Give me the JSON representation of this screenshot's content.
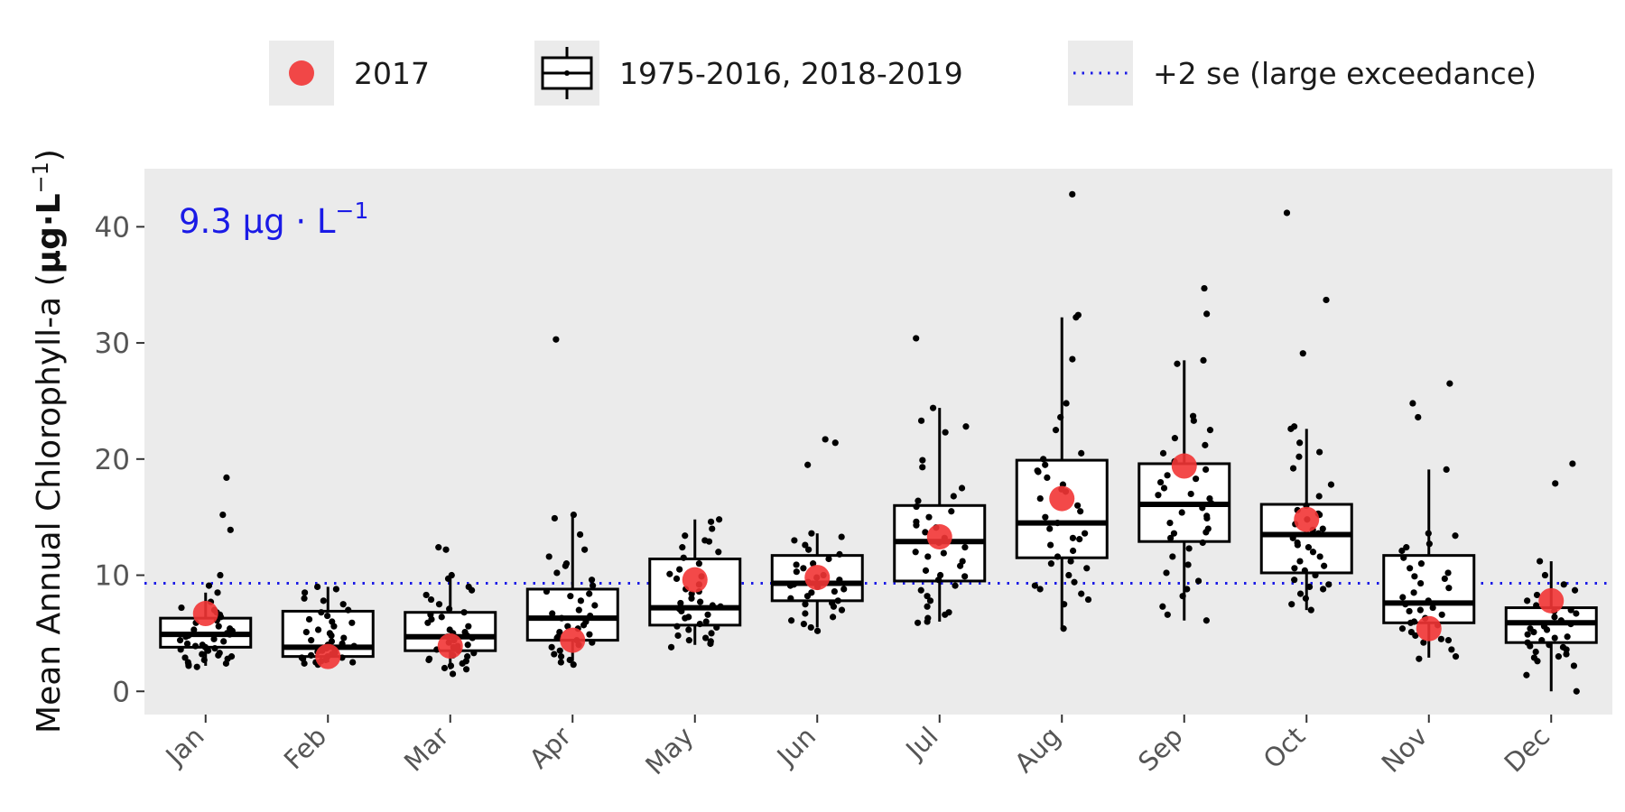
{
  "chart_data": {
    "type": "box",
    "title": "",
    "ylabel": "Mean Annual Chlorophyll-a (μg·L⁻¹)",
    "ylabel_parts": {
      "main": "Mean Annual Chlorophyll-a (",
      "unit": "μg·L",
      "sup": "−1",
      "close": ")"
    },
    "xlabel": "",
    "ylim": [
      -2,
      45
    ],
    "yticks": [
      "0",
      "10",
      "20",
      "30",
      "40"
    ],
    "ytick_values": [
      0,
      10,
      20,
      30,
      40
    ],
    "categories": [
      "Jan",
      "Feb",
      "Mar",
      "Apr",
      "May",
      "Jun",
      "Jul",
      "Aug",
      "Sep",
      "Oct",
      "Nov",
      "Dec"
    ],
    "grid": false,
    "legend_placement": "top",
    "legend": {
      "highlight": "2017",
      "reference": "1975-2016, 2018-2019",
      "threshold": "+2 se (large exceedance)"
    },
    "threshold": {
      "value": 9.3,
      "label_main": "9.3 μg · L",
      "label_sup": "−1",
      "color": "#1a1ae6"
    },
    "colors": {
      "panel": "#ebebeb",
      "highlight": "#f23535",
      "threshold": "#1a1ae6",
      "points": "#000000"
    },
    "boxes": [
      {
        "month": "Jan",
        "min": 2.2,
        "q1": 3.8,
        "median": 4.9,
        "q3": 6.3,
        "max": 8.5
      },
      {
        "month": "Feb",
        "min": 2.5,
        "q1": 3.0,
        "median": 3.8,
        "q3": 6.9,
        "max": 9.0
      },
      {
        "month": "Mar",
        "min": 1.9,
        "q1": 3.5,
        "median": 4.7,
        "q3": 6.8,
        "max": 10.0
      },
      {
        "month": "Apr",
        "min": 2.6,
        "q1": 4.4,
        "median": 6.3,
        "q3": 8.8,
        "max": 15.0
      },
      {
        "month": "May",
        "min": 4.0,
        "q1": 5.7,
        "median": 7.2,
        "q3": 11.4,
        "max": 14.8
      },
      {
        "month": "Jun",
        "min": 5.5,
        "q1": 7.8,
        "median": 9.3,
        "q3": 11.7,
        "max": 13.6
      },
      {
        "month": "Jul",
        "min": 6.0,
        "q1": 9.5,
        "median": 12.9,
        "q3": 16.0,
        "max": 24.4
      },
      {
        "month": "Aug",
        "min": 5.4,
        "q1": 11.5,
        "median": 14.5,
        "q3": 19.9,
        "max": 32.2
      },
      {
        "month": "Sep",
        "min": 6.1,
        "q1": 12.9,
        "median": 16.1,
        "q3": 19.6,
        "max": 28.5
      },
      {
        "month": "Oct",
        "min": 7.0,
        "q1": 10.2,
        "median": 13.5,
        "q3": 16.1,
        "max": 22.6
      },
      {
        "month": "Nov",
        "min": 2.9,
        "q1": 5.9,
        "median": 7.6,
        "q3": 11.7,
        "max": 19.1
      },
      {
        "month": "Dec",
        "min": 0.0,
        "q1": 4.2,
        "median": 5.9,
        "q3": 7.2,
        "max": 11.2
      }
    ],
    "highlight_2017": [
      6.7,
      3.0,
      3.9,
      4.4,
      9.6,
      9.8,
      13.3,
      16.6,
      19.4,
      14.8,
      5.4,
      7.8
    ],
    "points": [
      {
        "month": "Jan",
        "y": [
          18.4,
          15.2,
          13.9,
          10.0,
          9.1,
          8.5,
          7.7,
          7.2,
          6.8,
          6.4,
          6.1,
          5.9,
          5.6,
          5.4,
          5.2,
          5.0,
          4.8,
          4.7,
          4.5,
          4.3,
          4.1,
          4.0,
          3.9,
          3.8,
          3.7,
          3.6,
          3.5,
          3.3,
          3.2,
          3.1,
          2.9,
          2.8,
          2.7,
          2.5,
          2.4,
          2.2,
          2.1,
          6.6,
          5.3,
          4.4,
          3.0,
          2.3,
          7.0,
          4.9
        ]
      },
      {
        "month": "Feb",
        "y": [
          9.0,
          8.8,
          8.5,
          8.0,
          7.8,
          7.5,
          7.0,
          6.8,
          6.5,
          6.2,
          5.9,
          5.6,
          5.3,
          5.0,
          4.8,
          4.6,
          4.3,
          4.1,
          3.9,
          3.8,
          3.6,
          3.4,
          3.3,
          3.2,
          3.1,
          3.0,
          2.9,
          2.8,
          2.7,
          2.6,
          2.5,
          2.5,
          2.4,
          2.3,
          3.5,
          4.0,
          6.0,
          4.4,
          5.1,
          3.7,
          2.9
        ]
      },
      {
        "month": "Mar",
        "y": [
          12.4,
          12.2,
          10.0,
          9.7,
          9.0,
          8.7,
          8.3,
          7.9,
          7.5,
          7.1,
          6.8,
          6.6,
          6.2,
          5.9,
          5.6,
          5.3,
          5.0,
          4.8,
          4.6,
          4.4,
          4.2,
          4.0,
          3.8,
          3.6,
          3.5,
          3.3,
          3.1,
          3.0,
          2.8,
          2.6,
          2.4,
          2.2,
          2.0,
          1.9,
          1.5,
          5.1,
          4.7,
          3.9,
          6.4,
          2.7
        ]
      },
      {
        "month": "Apr",
        "y": [
          30.3,
          15.2,
          14.9,
          13.5,
          12.2,
          11.6,
          11.0,
          10.8,
          10.2,
          9.6,
          9.1,
          8.6,
          8.2,
          7.8,
          7.4,
          7.0,
          6.7,
          6.3,
          6.0,
          5.7,
          5.4,
          5.1,
          4.9,
          4.7,
          4.4,
          4.2,
          4.0,
          3.8,
          3.5,
          3.2,
          3.0,
          2.7,
          2.5,
          2.3,
          6.5,
          5.6,
          4.6,
          8.4
        ]
      },
      {
        "month": "May",
        "y": [
          14.8,
          14.6,
          14.0,
          13.4,
          13.0,
          12.4,
          12.0,
          11.5,
          11.0,
          10.5,
          10.1,
          9.7,
          9.2,
          8.8,
          8.4,
          8.0,
          7.7,
          7.4,
          7.1,
          6.9,
          6.6,
          6.3,
          6.0,
          5.8,
          5.6,
          5.3,
          5.0,
          4.8,
          4.6,
          4.3,
          4.1,
          3.8,
          7.3,
          6.4,
          5.5,
          12.9,
          4.4,
          9.9,
          8.6,
          7.6
        ]
      },
      {
        "month": "Jun",
        "y": [
          21.7,
          21.4,
          19.5,
          13.6,
          13.3,
          13.0,
          12.6,
          12.2,
          11.8,
          11.4,
          11.0,
          10.6,
          10.3,
          10.0,
          9.8,
          9.6,
          9.4,
          9.2,
          9.0,
          8.8,
          8.5,
          8.2,
          8.0,
          7.8,
          7.6,
          7.3,
          7.0,
          6.7,
          6.4,
          6.1,
          5.8,
          5.5,
          5.2,
          10.9,
          9.1,
          8.6,
          7.5
        ]
      },
      {
        "month": "Jul",
        "y": [
          30.4,
          24.4,
          23.3,
          22.8,
          22.3,
          19.9,
          19.3,
          17.5,
          16.8,
          15.9,
          15.5,
          15.0,
          14.6,
          14.1,
          13.7,
          13.2,
          12.8,
          12.4,
          12.0,
          11.6,
          11.2,
          10.8,
          10.4,
          10.0,
          9.6,
          9.1,
          8.7,
          8.2,
          7.8,
          7.3,
          6.8,
          6.3,
          6.0,
          5.9,
          14.3,
          11.9,
          9.9,
          16.4,
          6.6
        ]
      },
      {
        "month": "Aug",
        "y": [
          42.8,
          32.4,
          32.2,
          28.6,
          24.8,
          23.6,
          22.5,
          20.5,
          20.0,
          19.5,
          19.0,
          18.4,
          17.8,
          17.2,
          16.6,
          16.0,
          15.5,
          15.0,
          14.5,
          14.0,
          13.6,
          13.1,
          12.6,
          12.1,
          11.6,
          11.0,
          10.6,
          10.0,
          9.4,
          8.8,
          8.4,
          7.9,
          7.5,
          5.4,
          17.4,
          13.2,
          18.9,
          11.2,
          9.1
        ]
      },
      {
        "month": "Sep",
        "y": [
          34.7,
          32.5,
          28.5,
          28.2,
          23.7,
          23.3,
          22.5,
          21.8,
          21.2,
          20.5,
          19.8,
          19.1,
          18.6,
          18.0,
          17.5,
          17.0,
          16.6,
          16.2,
          15.8,
          15.4,
          14.9,
          14.5,
          14.0,
          13.6,
          13.2,
          12.8,
          12.3,
          11.6,
          10.9,
          10.2,
          9.5,
          8.8,
          8.2,
          7.3,
          6.6,
          6.1,
          18.3,
          15.1,
          13.7,
          16.9
        ]
      },
      {
        "month": "Oct",
        "y": [
          41.2,
          33.7,
          29.1,
          22.8,
          22.6,
          21.4,
          20.6,
          20.2,
          19.2,
          17.8,
          16.8,
          16.0,
          15.6,
          15.2,
          14.8,
          14.4,
          14.0,
          13.6,
          13.2,
          12.8,
          12.4,
          12.0,
          11.6,
          11.2,
          10.8,
          10.4,
          10.0,
          9.6,
          9.2,
          8.8,
          8.4,
          8.0,
          7.5,
          7.0,
          13.9,
          12.6,
          10.6,
          15.3,
          9.0
        ]
      },
      {
        "month": "Nov",
        "y": [
          26.5,
          24.8,
          23.6,
          19.1,
          13.6,
          13.4,
          12.7,
          12.1,
          11.5,
          11.0,
          10.6,
          10.2,
          9.7,
          9.3,
          8.9,
          8.5,
          8.1,
          7.8,
          7.5,
          7.2,
          6.9,
          6.6,
          6.3,
          6.0,
          5.7,
          5.4,
          5.1,
          4.8,
          4.5,
          4.2,
          3.6,
          3.0,
          2.8,
          12.4,
          9.9,
          7.0,
          5.9,
          4.4
        ]
      },
      {
        "month": "Dec",
        "y": [
          19.6,
          17.9,
          11.2,
          10.0,
          9.2,
          8.7,
          8.3,
          7.8,
          7.4,
          7.0,
          6.7,
          6.4,
          6.1,
          5.8,
          5.6,
          5.4,
          5.1,
          4.9,
          4.6,
          4.4,
          4.2,
          4.0,
          3.8,
          3.6,
          3.4,
          3.2,
          3.0,
          2.6,
          2.2,
          1.4,
          0.0,
          6.9,
          5.3,
          4.7,
          3.9,
          2.9
        ]
      }
    ]
  }
}
